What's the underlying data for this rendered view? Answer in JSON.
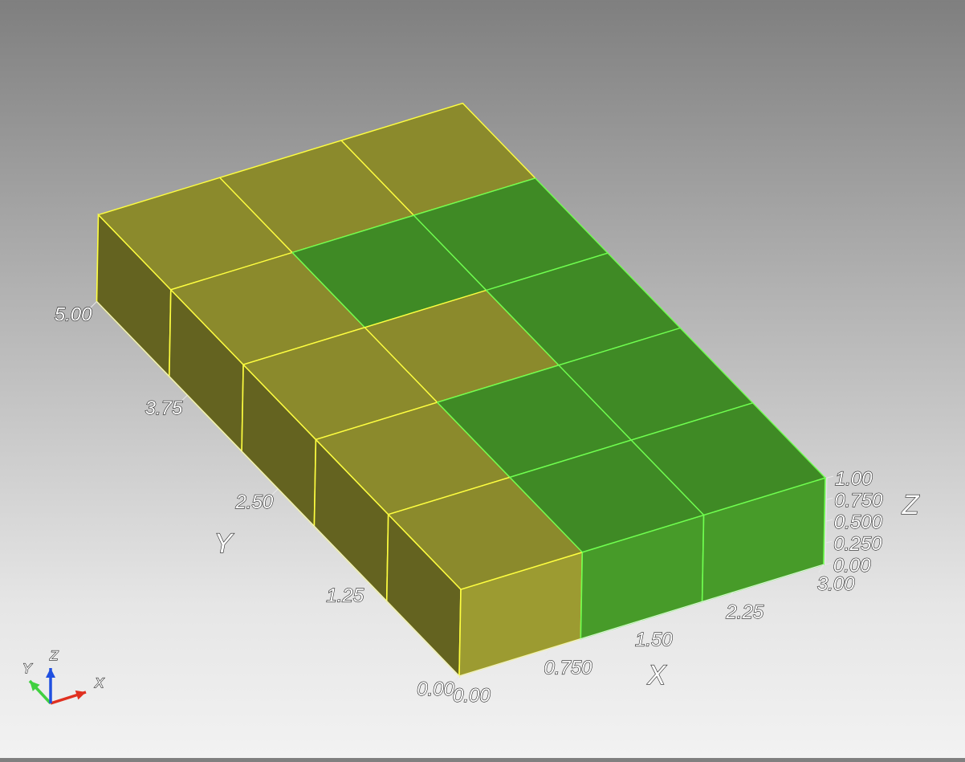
{
  "chart_data": {
    "type": "3d-grid-render",
    "grid": {
      "nx": 3,
      "ny": 5,
      "nz": 1
    },
    "cell_values": [
      [
        0,
        1,
        1
      ],
      [
        0,
        1,
        1
      ],
      [
        0,
        0,
        1
      ],
      [
        0,
        1,
        1
      ],
      [
        0,
        0,
        0
      ]
    ],
    "colors": {
      "value_0": "#8b8a2c",
      "value_1": "#3f8a25",
      "edge_0": "#ffff40",
      "edge_1": "#70ff50",
      "axis_x": "#e03020",
      "axis_y": "#40d040",
      "axis_z": "#2050e0"
    },
    "axes": {
      "x": {
        "title": "X",
        "range": [
          0,
          3
        ],
        "ticks": [
          "0.00",
          "0.750",
          "1.50",
          "2.25",
          "3.00"
        ]
      },
      "y": {
        "title": "Y",
        "range": [
          0,
          5
        ],
        "ticks": [
          "0.00",
          "1.25",
          "2.50",
          "3.75",
          "5.00"
        ]
      },
      "z": {
        "title": "Z",
        "range": [
          0,
          1
        ],
        "ticks": [
          "0.00",
          "0.250",
          "0.500",
          "0.750",
          "1.00"
        ]
      }
    },
    "orientation_triad": {
      "x": "X",
      "y": "Y",
      "z": "Z"
    }
  }
}
